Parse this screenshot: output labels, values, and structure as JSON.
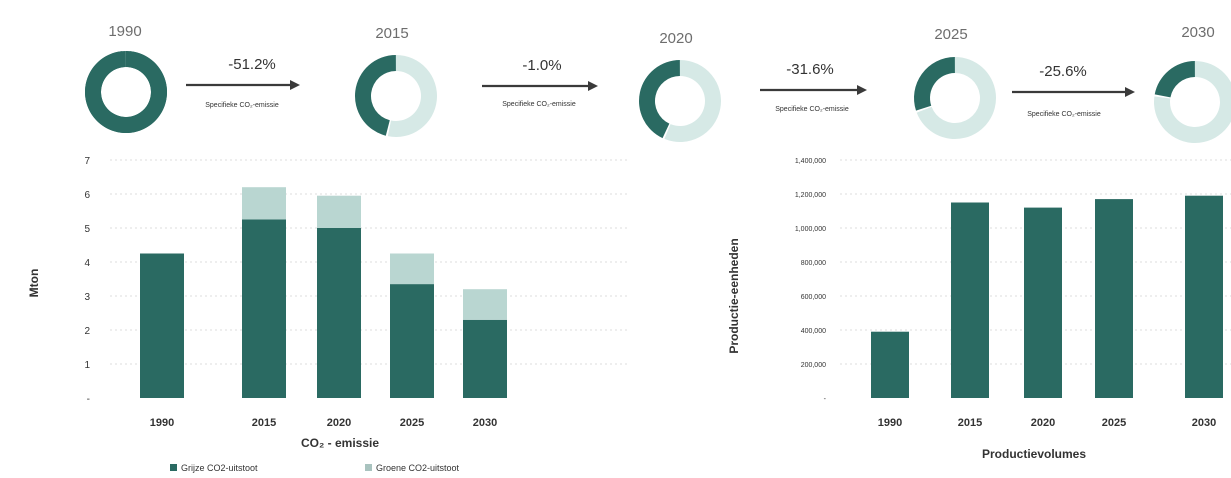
{
  "colors": {
    "dark": "#2a6a62",
    "light": "#b9d6d1",
    "lightest": "#d6e9e6",
    "legend_light": "#a9c3bf"
  },
  "specific_label": "Specifieke CO₂-emissie",
  "donuts": [
    {
      "year": "1990",
      "dark_share": 1.0
    },
    {
      "year": "2015",
      "dark_share": 0.46
    },
    {
      "year": "2020",
      "dark_share": 0.43
    },
    {
      "year": "2025",
      "dark_share": 0.3
    },
    {
      "year": "2030",
      "dark_share": 0.22
    }
  ],
  "arrows": [
    {
      "pct": "-51.2%",
      "label": "Specifieke CO₂-emissie"
    },
    {
      "pct": "-1.0%",
      "label": "Specifieke CO₂-emissie"
    },
    {
      "pct": "-31.6%",
      "label": "Specifieke CO₂-emissie"
    },
    {
      "pct": "-25.6%",
      "label": "Specifieke CO₂-emissie"
    }
  ],
  "chart_data": [
    {
      "type": "bar",
      "stacked": true,
      "categories": [
        "1990",
        "2015",
        "2020",
        "2025",
        "2030"
      ],
      "series": [
        {
          "name": "Grijze CO2-uitstoot",
          "values": [
            4.25,
            5.25,
            5.0,
            3.35,
            2.3
          ]
        },
        {
          "name": "Groene CO2-uitstoot",
          "values": [
            0,
            0.95,
            0.95,
            0.9,
            0.9
          ]
        }
      ],
      "ylabel": "Mton",
      "xlabel": "CO₂ - emissie",
      "ylim": [
        0,
        7
      ],
      "yticks": [
        "-",
        "1",
        "2",
        "3",
        "4",
        "5",
        "6",
        "7"
      ],
      "legend_position": "bottom",
      "grid": true
    },
    {
      "type": "bar",
      "categories": [
        "1990",
        "2015",
        "2020",
        "2025",
        "2030"
      ],
      "values": [
        390000,
        1150000,
        1120000,
        1170000,
        1190000
      ],
      "ylabel": "Productie-eenheden",
      "xlabel": "Productievolumes",
      "ylim": [
        0,
        1400000
      ],
      "yticks": [
        "-",
        "200,000",
        "400,000",
        "600,000",
        "800,000",
        "1,000,000",
        "1,200,000",
        "1,400,000"
      ],
      "grid": true
    }
  ]
}
